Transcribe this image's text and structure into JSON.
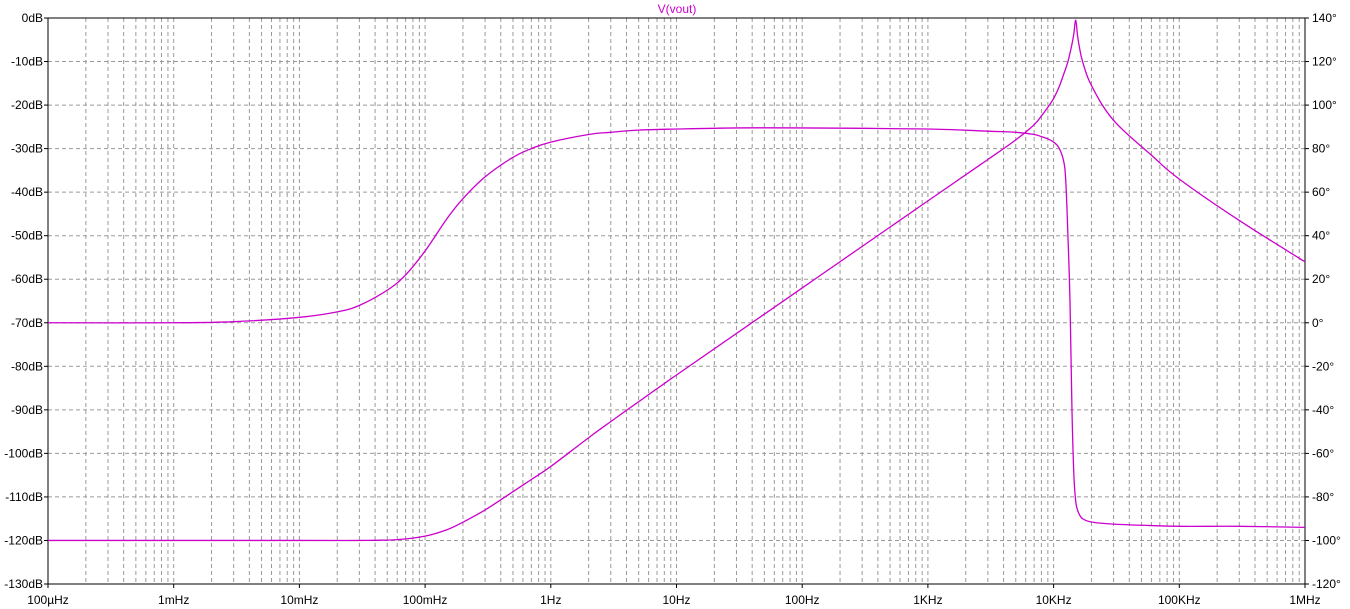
{
  "colors": {
    "trace": "#cc00cc",
    "grid": "#9a9a9a",
    "frame": "#000000",
    "background": "#ffffff"
  },
  "chart_data": {
    "type": "line",
    "title": "V(vout)",
    "x_scale": "log",
    "x_unit": "Hz",
    "xlim": [
      0.0001,
      1000000
    ],
    "ylim_left": [
      -130,
      0
    ],
    "ylim_right": [
      -120,
      140
    ],
    "grid": true,
    "x_tick_labels": [
      {
        "value": 0.0001,
        "label": "100µHz"
      },
      {
        "value": 0.001,
        "label": "1mHz"
      },
      {
        "value": 0.01,
        "label": "10mHz"
      },
      {
        "value": 0.1,
        "label": "100mHz"
      },
      {
        "value": 1,
        "label": "1Hz"
      },
      {
        "value": 10,
        "label": "10Hz"
      },
      {
        "value": 100,
        "label": "100Hz"
      },
      {
        "value": 1000,
        "label": "1KHz"
      },
      {
        "value": 10000,
        "label": "10KHz"
      },
      {
        "value": 100000,
        "label": "100KHz"
      },
      {
        "value": 1000000,
        "label": "1MHz"
      }
    ],
    "y_left_tick_labels": [
      {
        "value": 0,
        "label": "0dB"
      },
      {
        "value": -10,
        "label": "-10dB"
      },
      {
        "value": -20,
        "label": "-20dB"
      },
      {
        "value": -30,
        "label": "-30dB"
      },
      {
        "value": -40,
        "label": "-40dB"
      },
      {
        "value": -50,
        "label": "-50dB"
      },
      {
        "value": -60,
        "label": "-60dB"
      },
      {
        "value": -70,
        "label": "-70dB"
      },
      {
        "value": -80,
        "label": "-80dB"
      },
      {
        "value": -90,
        "label": "-90dB"
      },
      {
        "value": -100,
        "label": "-100dB"
      },
      {
        "value": -110,
        "label": "-110dB"
      },
      {
        "value": -120,
        "label": "-120dB"
      },
      {
        "value": -130,
        "label": "-130dB"
      }
    ],
    "y_right_tick_labels": [
      {
        "value": 140,
        "label": "140°"
      },
      {
        "value": 120,
        "label": "120°"
      },
      {
        "value": 100,
        "label": "100°"
      },
      {
        "value": 80,
        "label": "80°"
      },
      {
        "value": 60,
        "label": "60°"
      },
      {
        "value": 40,
        "label": "40°"
      },
      {
        "value": 20,
        "label": "20°"
      },
      {
        "value": 0,
        "label": "0°"
      },
      {
        "value": -20,
        "label": "-20°"
      },
      {
        "value": -40,
        "label": "-40°"
      },
      {
        "value": -60,
        "label": "-60°"
      },
      {
        "value": -80,
        "label": "-80°"
      },
      {
        "value": -100,
        "label": "-100°"
      },
      {
        "value": -120,
        "label": "-120°"
      }
    ],
    "series": [
      {
        "axis": "left",
        "x": [
          0.0001,
          0.001,
          0.01,
          0.03,
          0.06,
          0.1,
          0.15,
          0.2,
          0.3,
          0.5,
          0.7,
          1,
          2,
          3,
          10,
          100,
          1000,
          3000,
          5000,
          7000,
          8000,
          9000,
          10000,
          11000,
          12000,
          13000,
          14000,
          14500,
          15000,
          15500,
          16000,
          17000,
          20000,
          30000,
          60000,
          100000,
          300000,
          1000000
        ],
        "y": [
          -120,
          -120,
          -120,
          -120,
          -119.8,
          -119,
          -117.5,
          -115.8,
          -113,
          -108.8,
          -106,
          -103,
          -96.4,
          -92.7,
          -82,
          -62,
          -42,
          -32.5,
          -28,
          -24.5,
          -22.5,
          -20.5,
          -18.5,
          -16,
          -13,
          -10,
          -6,
          -3.5,
          -0.5,
          -4,
          -6.5,
          -10,
          -15.5,
          -23.5,
          -31.5,
          -37,
          -46.5,
          -56
        ]
      },
      {
        "axis": "right",
        "x": [
          0.0001,
          0.001,
          0.003,
          0.01,
          0.02,
          0.03,
          0.05,
          0.07,
          0.1,
          0.15,
          0.2,
          0.3,
          0.5,
          0.7,
          1,
          2,
          3,
          5,
          10,
          30,
          100,
          1000,
          3000,
          5000,
          7000,
          8000,
          9000,
          10000,
          11000,
          12000,
          12500,
          13000,
          13500,
          14000,
          14500,
          15000,
          15500,
          16000,
          17000,
          20000,
          30000,
          50000,
          100000,
          300000,
          1000000
        ],
        "y": [
          0,
          0,
          0.5,
          2.5,
          5,
          8,
          15,
          22,
          33,
          48,
          57,
          67,
          76,
          80,
          83,
          86.5,
          87.5,
          88.5,
          89,
          89.5,
          89.5,
          89,
          88,
          87.5,
          86.5,
          85.5,
          84.5,
          83,
          80.5,
          74.5,
          65,
          40,
          10,
          -40,
          -70,
          -82,
          -86,
          -88,
          -90,
          -91.5,
          -92.5,
          -93,
          -93.5,
          -93.5,
          -94
        ]
      }
    ]
  }
}
